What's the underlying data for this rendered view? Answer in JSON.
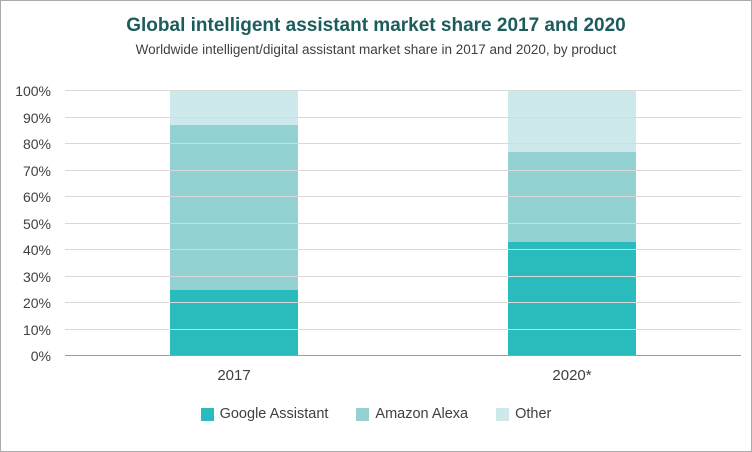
{
  "chart": {
    "title": "Global intelligent assistant market share 2017 and 2020",
    "subtitle": "Worldwide intelligent/digital assistant market share in 2017 and 2020, by product"
  },
  "chart_data": {
    "type": "bar",
    "stacked": true,
    "title": "Global intelligent assistant market share 2017 and 2020",
    "subtitle": "Worldwide intelligent/digital assistant market share in 2017 and 2020, by product",
    "categories": [
      "2017",
      "2020*"
    ],
    "series": [
      {
        "name": "Google Assistant",
        "color": "#2abcbc",
        "values": [
          25,
          43
        ]
      },
      {
        "name": "Amazon Alexa",
        "color": "#93d1d3",
        "values": [
          62,
          34
        ]
      },
      {
        "name": "Other",
        "color": "#cde9ec",
        "values": [
          13,
          23
        ]
      }
    ],
    "xlabel": "",
    "ylabel": "",
    "ylim": [
      0,
      100
    ],
    "ytick_step": 10,
    "ytick_suffix": "%",
    "grid": true,
    "legend_position": "bottom"
  }
}
